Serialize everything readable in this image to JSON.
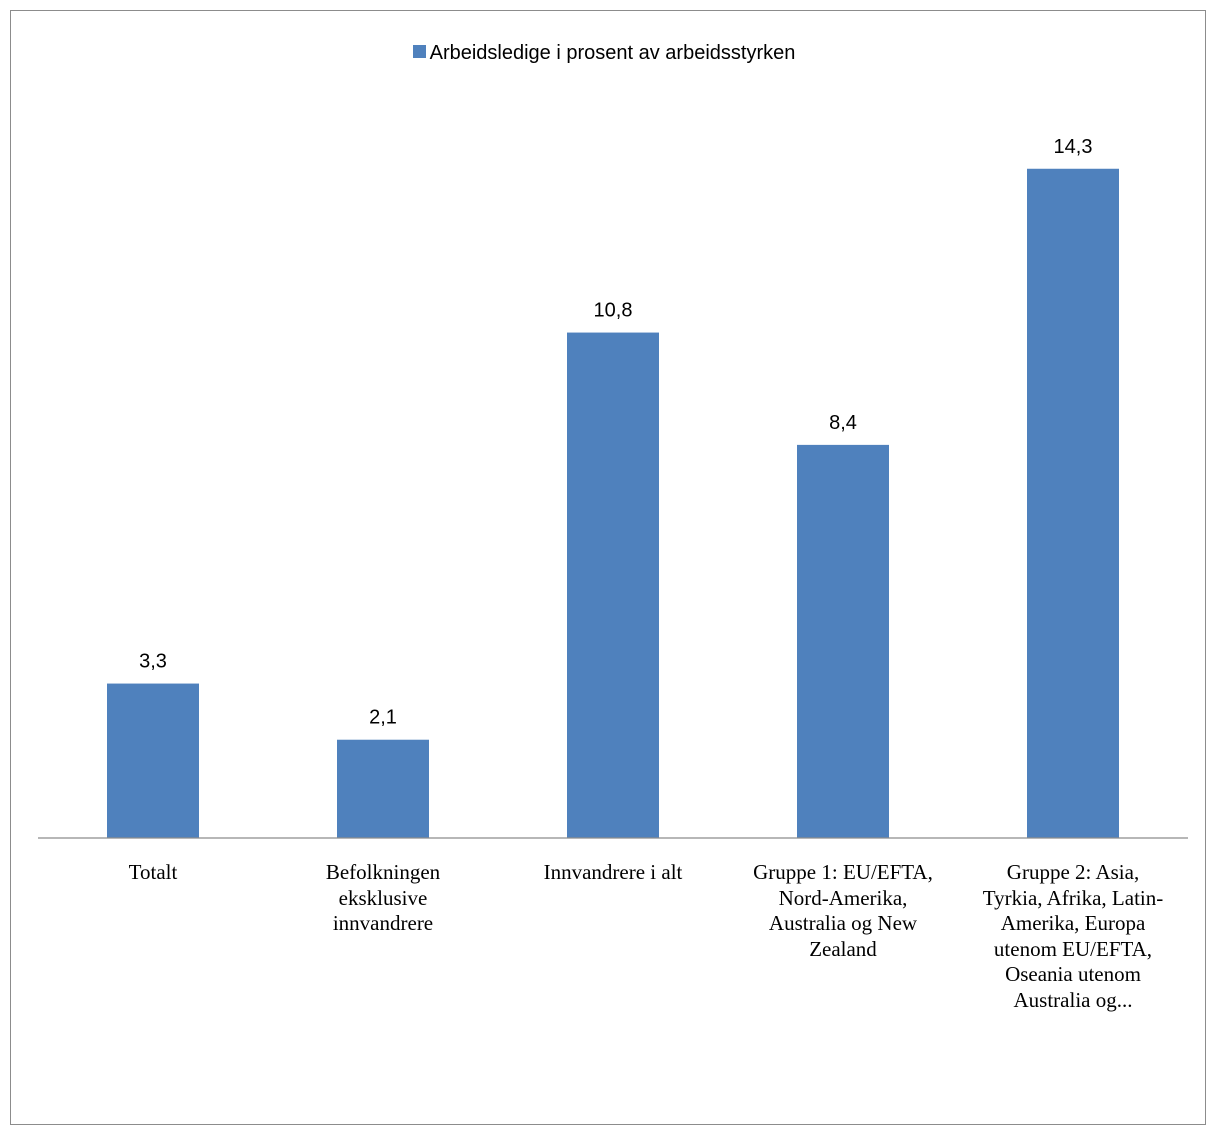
{
  "chart_data": {
    "type": "bar",
    "categories": [
      "Totalt",
      "Befolkningen eksklusive innvandrere",
      "Innvandrere i alt",
      "Gruppe 1: EU/EFTA, Nord-Amerika, Australia og New Zealand",
      "Gruppe 2: Asia, Tyrkia, Afrika, Latin-Amerika, Europa utenom EU/EFTA, Oseania utenom Australia og..."
    ],
    "series": [
      {
        "name": "Arbeidsledige i prosent av arbeidsstyrken",
        "values": [
          3.3,
          2.1,
          10.8,
          8.4,
          14.3
        ],
        "data_labels": [
          "3,3",
          "2,1",
          "10,8",
          "8,4",
          "14,3"
        ],
        "color": "#4f81bd"
      }
    ],
    "title": "",
    "xlabel": "",
    "ylabel": "",
    "ylim": [
      0,
      16
    ],
    "grid": false,
    "legend": "top"
  }
}
